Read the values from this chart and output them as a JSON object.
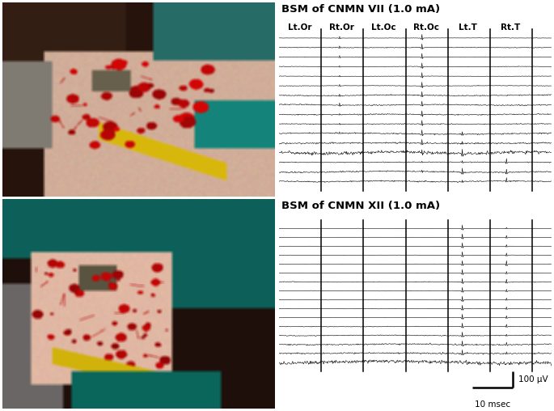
{
  "fig_width": 6.85,
  "fig_height": 5.08,
  "dpi": 100,
  "title1": "BSM of CNMN VII (1.0 mA)",
  "title2": "BSM of CNMN XII (1.0 mA)",
  "channel_labels": [
    "Lt.Or",
    "Rt.Or",
    "Lt.Oc",
    "Rt.Oc",
    "Lt.T",
    "Rt.T"
  ],
  "n_channels": 16,
  "scalebar_label_x": "10 msec",
  "scalebar_label_y": "100 μV",
  "background_color": "#ffffff",
  "title_fontsize": 9.5,
  "label_fontsize": 7.5
}
